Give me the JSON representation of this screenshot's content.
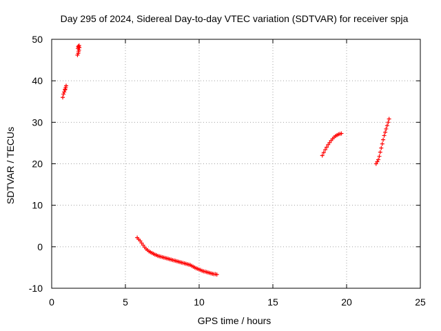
{
  "chart_data": {
    "type": "scatter",
    "title": "Day 295 of 2024, Sidereal Day-to-day VTEC variation (SDTVAR) for receiver spja",
    "xlabel": "GPS time / hours",
    "ylabel": "SDTVAR / TECUs",
    "xlim": [
      0,
      25
    ],
    "ylim": [
      -10,
      50
    ],
    "xticks": [
      0,
      5,
      10,
      15,
      20,
      25
    ],
    "yticks": [
      -10,
      0,
      10,
      20,
      30,
      40,
      50
    ],
    "xtick_labels": [
      "0",
      "5",
      "10",
      "15",
      "20",
      "25"
    ],
    "ytick_labels": [
      "-10",
      "0",
      "10",
      "20",
      "30",
      "40",
      "50"
    ],
    "grid": true,
    "legend": "none",
    "marker": "plus",
    "color": "#ff0000",
    "series": [
      {
        "name": "segment-1",
        "x": [
          0.75,
          0.8,
          0.85,
          0.9,
          0.92,
          0.95,
          0.98
        ],
        "y": [
          36.0,
          36.8,
          37.3,
          37.8,
          38.0,
          38.4,
          38.8
        ]
      },
      {
        "name": "segment-2",
        "x": [
          1.75,
          1.8,
          1.82,
          1.85,
          1.78,
          1.88,
          1.8,
          1.86,
          1.83
        ],
        "y": [
          46.2,
          46.6,
          47.0,
          47.4,
          47.8,
          48.0,
          48.3,
          48.5,
          48.1
        ]
      },
      {
        "name": "segment-3",
        "x": [
          5.8,
          5.9,
          6.0,
          6.1,
          6.2,
          6.3,
          6.4,
          6.5,
          6.6,
          6.7,
          6.8,
          6.9,
          7.0,
          7.1,
          7.2,
          7.3,
          7.4,
          7.5,
          7.6,
          7.7,
          7.8,
          7.9,
          8.0,
          8.1,
          8.2,
          8.3,
          8.4,
          8.5,
          8.6,
          8.7,
          8.8,
          8.9,
          9.0,
          9.1,
          9.2,
          9.3,
          9.4,
          9.5,
          9.6,
          9.7,
          9.8,
          9.9,
          10.0,
          10.1,
          10.2,
          10.3,
          10.4,
          10.5,
          10.6,
          10.7,
          10.8,
          10.9,
          11.0,
          11.1,
          11.2
        ],
        "y": [
          2.2,
          1.8,
          1.4,
          0.9,
          0.4,
          -0.1,
          -0.5,
          -0.8,
          -1.1,
          -1.3,
          -1.5,
          -1.7,
          -1.9,
          -2.0,
          -2.2,
          -2.3,
          -2.4,
          -2.5,
          -2.6,
          -2.7,
          -2.8,
          -2.9,
          -3.0,
          -3.1,
          -3.2,
          -3.3,
          -3.4,
          -3.5,
          -3.6,
          -3.7,
          -3.8,
          -3.9,
          -4.0,
          -4.1,
          -4.2,
          -4.3,
          -4.4,
          -4.6,
          -4.8,
          -5.0,
          -5.2,
          -5.3,
          -5.5,
          -5.6,
          -5.8,
          -5.9,
          -6.0,
          -6.1,
          -6.2,
          -6.3,
          -6.4,
          -6.5,
          -6.6,
          -6.6,
          -6.7
        ]
      },
      {
        "name": "segment-4",
        "x": [
          18.35,
          18.45,
          18.55,
          18.65,
          18.75,
          18.85,
          18.95,
          19.05,
          19.15,
          19.25,
          19.35,
          19.45,
          19.55,
          19.65
        ],
        "y": [
          22.0,
          22.7,
          23.4,
          24.0,
          24.6,
          25.1,
          25.6,
          26.0,
          26.4,
          26.7,
          26.9,
          27.1,
          27.2,
          27.3
        ]
      },
      {
        "name": "segment-5",
        "x": [
          22.0,
          22.08,
          22.15,
          22.22,
          22.28,
          22.35,
          22.42,
          22.48,
          22.55,
          22.62,
          22.68,
          22.75,
          22.82,
          22.88
        ],
        "y": [
          20.0,
          20.5,
          21.0,
          21.8,
          22.8,
          23.8,
          24.8,
          25.8,
          26.8,
          27.6,
          28.4,
          29.2,
          30.0,
          30.8
        ]
      }
    ]
  }
}
